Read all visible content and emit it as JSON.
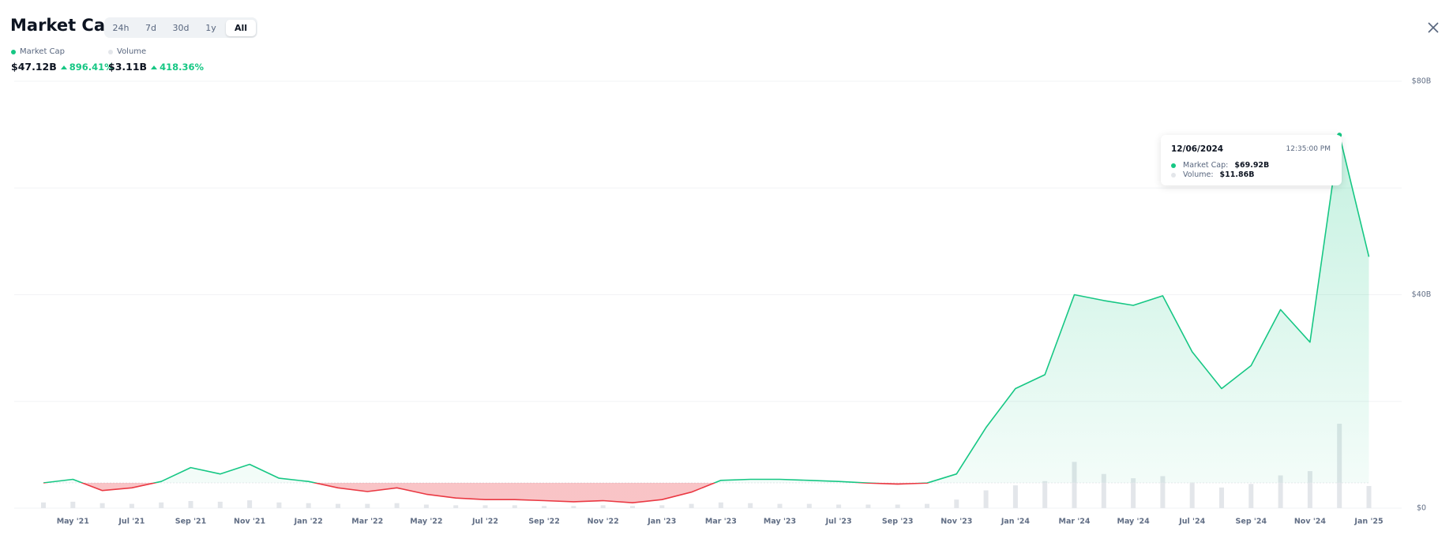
{
  "header": {
    "title": "Market Cap",
    "range_buttons": [
      "24h",
      "7d",
      "30d",
      "1y",
      "All"
    ],
    "active_button": 4,
    "stats": [
      {
        "value": "$47.12B",
        "change": "896.41%"
      },
      {
        "value": "$3.11B",
        "change": "418.36%"
      }
    ]
  },
  "tooltip": {
    "date": "12/06/2024",
    "time": "12:35:00 PM",
    "rows": [
      {
        "label": "Market Cap:",
        "value": "$69.92B"
      },
      {
        "label": "Volume:",
        "value": "$11.86B"
      }
    ]
  },
  "chart_data": {
    "type": "line",
    "categories": [
      null,
      "May '21",
      null,
      "Jul '21",
      null,
      "Sep '21",
      null,
      "Nov '21",
      null,
      "Jan '22",
      null,
      "Mar '22",
      null,
      "May '22",
      null,
      "Jul '22",
      null,
      "Sep '22",
      null,
      "Nov '22",
      null,
      "Jan '23",
      null,
      "Mar '23",
      null,
      "May '23",
      null,
      "Jul '23",
      null,
      "Sep '23",
      null,
      "Nov '23",
      null,
      "Jan '24",
      null,
      "Mar '24",
      null,
      "May '24",
      null,
      "Jul '24",
      null,
      "Sep '24",
      null,
      "Nov '24",
      null,
      "Jan '25"
    ],
    "series": [
      {
        "name": "Market Cap",
        "color": "#16c784",
        "negative_color": "#ea3943",
        "values": [
          4.73,
          5.4,
          3.3,
          3.8,
          5.0,
          7.6,
          6.4,
          8.2,
          5.6,
          5.0,
          3.8,
          3.1,
          3.8,
          2.6,
          1.9,
          1.6,
          1.6,
          1.4,
          1.2,
          1.4,
          1.0,
          1.6,
          3.0,
          5.2,
          5.4,
          5.4,
          5.2,
          5.0,
          4.7,
          4.5,
          4.7,
          6.4,
          15.1,
          22.4,
          25.0,
          40.0,
          38.9,
          38.0,
          39.8,
          29.3,
          22.4,
          26.7,
          37.2,
          31.1,
          69.92,
          47.12
        ]
      },
      {
        "name": "Volume",
        "color": "#e3e6ea",
        "type": "bar",
        "axis": "y2",
        "values": [
          0.8,
          0.9,
          0.7,
          0.6,
          0.8,
          1.0,
          0.9,
          1.1,
          0.8,
          0.7,
          0.6,
          0.6,
          0.7,
          0.5,
          0.4,
          0.4,
          0.4,
          0.3,
          0.3,
          0.4,
          0.3,
          0.4,
          0.6,
          0.8,
          0.7,
          0.6,
          0.6,
          0.5,
          0.5,
          0.5,
          0.6,
          1.2,
          2.5,
          3.2,
          3.8,
          6.5,
          4.8,
          4.2,
          4.5,
          3.6,
          2.9,
          3.4,
          4.6,
          5.2,
          11.86,
          3.11
        ]
      }
    ],
    "ylim": [
      0,
      80
    ],
    "yticks": [
      {
        "value": 0,
        "label": "$0"
      },
      {
        "value": 40,
        "label": "$40B"
      },
      {
        "value": 80,
        "label": "$80B"
      }
    ],
    "minor_yticks": [
      20,
      60
    ],
    "y2lim": [
      0,
      60
    ],
    "grid": true
  }
}
